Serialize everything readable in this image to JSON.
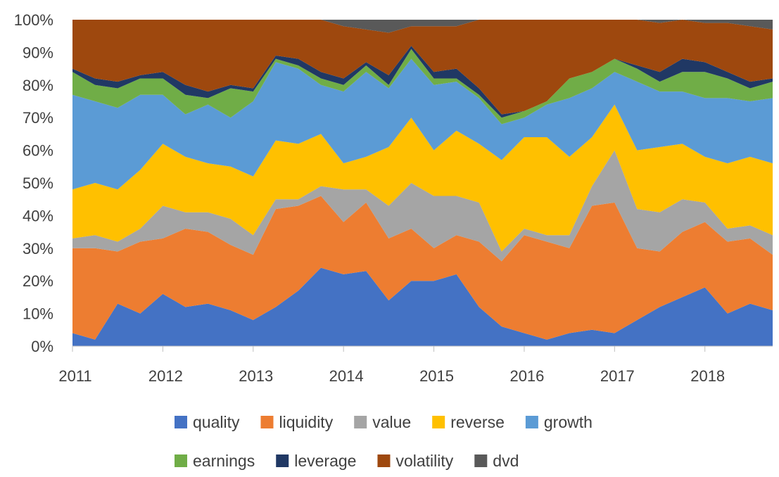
{
  "chart_data": {
    "type": "area",
    "stacked": true,
    "normalized_percent": true,
    "x_ticks": [
      "2011",
      "2012",
      "2013",
      "2014",
      "2015",
      "2016",
      "2017",
      "2018"
    ],
    "y_ticks": [
      "0%",
      "10%",
      "20%",
      "30%",
      "40%",
      "50%",
      "60%",
      "70%",
      "80%",
      "90%",
      "100%"
    ],
    "x_range": [
      2011.0,
      2018.75
    ],
    "y_range": [
      0,
      100
    ],
    "x": [
      2011.0,
      2011.25,
      2011.5,
      2011.75,
      2012.0,
      2012.25,
      2012.5,
      2012.75,
      2013.0,
      2013.25,
      2013.5,
      2013.75,
      2014.0,
      2014.25,
      2014.5,
      2014.75,
      2015.0,
      2015.25,
      2015.5,
      2015.75,
      2016.0,
      2016.25,
      2016.5,
      2016.75,
      2017.0,
      2017.25,
      2017.5,
      2017.75,
      2018.0,
      2018.25,
      2018.5,
      2018.75
    ],
    "series": [
      {
        "name": "quality",
        "color": "#4472C4",
        "values": [
          4,
          2,
          13,
          10,
          16,
          12,
          13,
          11,
          8,
          12,
          17,
          24,
          22,
          23,
          14,
          20,
          20,
          22,
          12,
          6,
          4,
          2,
          4,
          5,
          4,
          8,
          12,
          15,
          18,
          10,
          13,
          11
        ]
      },
      {
        "name": "liquidity",
        "color": "#ED7D31",
        "values": [
          26,
          28,
          16,
          22,
          17,
          24,
          22,
          20,
          20,
          30,
          26,
          22,
          16,
          21,
          19,
          16,
          10,
          12,
          20,
          20,
          30,
          30,
          26,
          38,
          40,
          22,
          17,
          20,
          20,
          22,
          20,
          17
        ]
      },
      {
        "name": "value",
        "color": "#A5A5A5",
        "values": [
          3,
          4,
          3,
          4,
          10,
          5,
          6,
          8,
          6,
          3,
          2,
          3,
          10,
          4,
          10,
          14,
          16,
          12,
          12,
          3,
          2,
          2,
          4,
          6,
          16,
          12,
          12,
          10,
          6,
          4,
          4,
          6
        ]
      },
      {
        "name": "reverse",
        "color": "#FFC000",
        "values": [
          15,
          16,
          16,
          18,
          19,
          17,
          15,
          16,
          18,
          18,
          17,
          16,
          8,
          10,
          18,
          20,
          14,
          20,
          18,
          28,
          28,
          30,
          24,
          15,
          14,
          18,
          20,
          17,
          14,
          20,
          21,
          22
        ]
      },
      {
        "name": "growth",
        "color": "#5B9BD5",
        "values": [
          29,
          25,
          25,
          23,
          15,
          13,
          18,
          15,
          23,
          24,
          23,
          15,
          22,
          26,
          18,
          18,
          20,
          15,
          14,
          11,
          6,
          10,
          18,
          15,
          10,
          21,
          17,
          16,
          18,
          20,
          17,
          20
        ]
      },
      {
        "name": "earnings",
        "color": "#70AD47",
        "values": [
          7,
          5,
          6,
          5,
          5,
          6,
          2,
          9,
          3,
          1,
          1,
          2,
          2,
          2,
          1,
          3,
          2,
          1,
          1,
          2,
          2,
          1,
          6,
          5,
          4,
          4,
          3,
          6,
          8,
          6,
          4,
          5
        ]
      },
      {
        "name": "leverage",
        "color": "#203864",
        "values": [
          1,
          2,
          2,
          1,
          2,
          3,
          2,
          1,
          1,
          1,
          2,
          2,
          2,
          1,
          3,
          1,
          2,
          3,
          2,
          1,
          0,
          0,
          0,
          0,
          0,
          1,
          3,
          4,
          3,
          2,
          2,
          1
        ]
      },
      {
        "name": "volatility",
        "color": "#9E480E",
        "values": [
          15,
          18,
          19,
          17,
          16,
          20,
          22,
          20,
          21,
          11,
          12,
          16,
          16,
          10,
          13,
          6,
          14,
          13,
          21,
          29,
          28,
          25,
          18,
          16,
          12,
          14,
          15,
          12,
          12,
          15,
          17,
          15
        ]
      },
      {
        "name": "dvd",
        "color": "#595959",
        "values": [
          0,
          0,
          0,
          0,
          0,
          0,
          0,
          0,
          0,
          0,
          0,
          0,
          2,
          3,
          4,
          2,
          2,
          2,
          0,
          0,
          0,
          0,
          0,
          0,
          0,
          0,
          1,
          0,
          1,
          1,
          2,
          3
        ]
      }
    ],
    "legend": {
      "placement": "bottom",
      "rows": [
        [
          "quality",
          "liquidity",
          "value",
          "reverse",
          "growth"
        ],
        [
          "earnings",
          "leverage",
          "volatility",
          "dvd"
        ]
      ]
    },
    "grid": false,
    "title": "",
    "xlabel": "",
    "ylabel": ""
  }
}
